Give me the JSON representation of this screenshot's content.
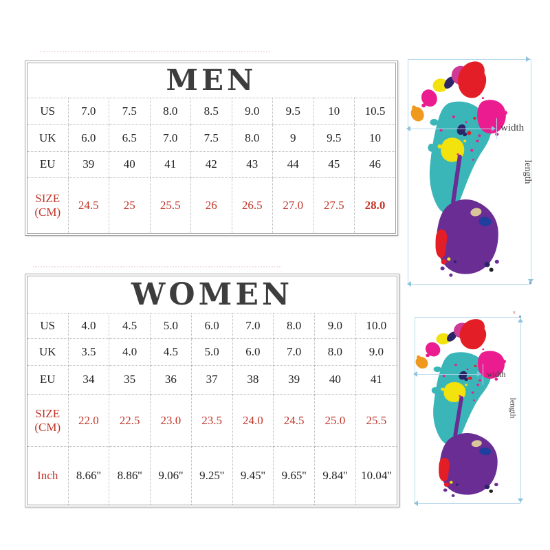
{
  "men_table": {
    "title": "MEN",
    "rows": [
      {
        "label": "US",
        "values": [
          "7.0",
          "7.5",
          "8.0",
          "8.5",
          "9.0",
          "9.5",
          "10",
          "10.5"
        ]
      },
      {
        "label": "UK",
        "values": [
          "6.0",
          "6.5",
          "7.0",
          "7.5",
          "8.0",
          "9",
          "9.5",
          "10"
        ]
      },
      {
        "label": "EU",
        "values": [
          "39",
          "40",
          "41",
          "42",
          "43",
          "44",
          "45",
          "46"
        ]
      },
      {
        "label": "SIZE (CM)",
        "label_red": true,
        "values_red": true,
        "bold_indices": [
          7
        ],
        "values": [
          "24.5",
          "25",
          "25.5",
          "26",
          "26.5",
          "27.0",
          "27.5",
          "28.0"
        ]
      }
    ]
  },
  "women_table": {
    "title": "WOMEN",
    "rows": [
      {
        "label": "US",
        "values": [
          "4.0",
          "4.5",
          "5.0",
          "6.0",
          "7.0",
          "8.0",
          "9.0",
          "10.0"
        ]
      },
      {
        "label": "UK",
        "values": [
          "3.5",
          "4.0",
          "4.5",
          "5.0",
          "6.0",
          "7.0",
          "8.0",
          "9.0"
        ]
      },
      {
        "label": "EU",
        "values": [
          "34",
          "35",
          "36",
          "37",
          "38",
          "39",
          "40",
          "41"
        ]
      },
      {
        "label": "SIZE (CM)",
        "label_red": true,
        "values_red": true,
        "values": [
          "22.0",
          "22.5",
          "23.0",
          "23.5",
          "24.0",
          "24.5",
          "25.0",
          "25.5"
        ]
      },
      {
        "label": "Inch",
        "label_red": true,
        "values": [
          "8.66''",
          "8.86''",
          "9.06''",
          "9.25''",
          "9.45''",
          "9.65''",
          "9.84''",
          "10.04''"
        ]
      }
    ]
  },
  "diagram": {
    "width_label": "width",
    "length_label": "length",
    "corner_mark": "×"
  },
  "colors": {
    "red_text": "#c13528",
    "title_text": "#3d3d3d",
    "table_border": "#a3a3a3",
    "cell_dotted": "#b8b8b8",
    "dim_line": "#b5d8ea",
    "dim_arrow": "#8fc3dd",
    "annotation_text": "#3f3f3f",
    "paint_teal": "#3bb6b8",
    "paint_red": "#e31e26",
    "paint_magenta": "#ea1c8f",
    "paint_orchid": "#cf3a96",
    "paint_purple": "#6a2d94",
    "paint_yellow": "#f2e20e",
    "paint_orange": "#f0991f",
    "paint_navy": "#2b2568",
    "paint_blue": "#1f3e9e",
    "paint_tan": "#d9c69a"
  }
}
